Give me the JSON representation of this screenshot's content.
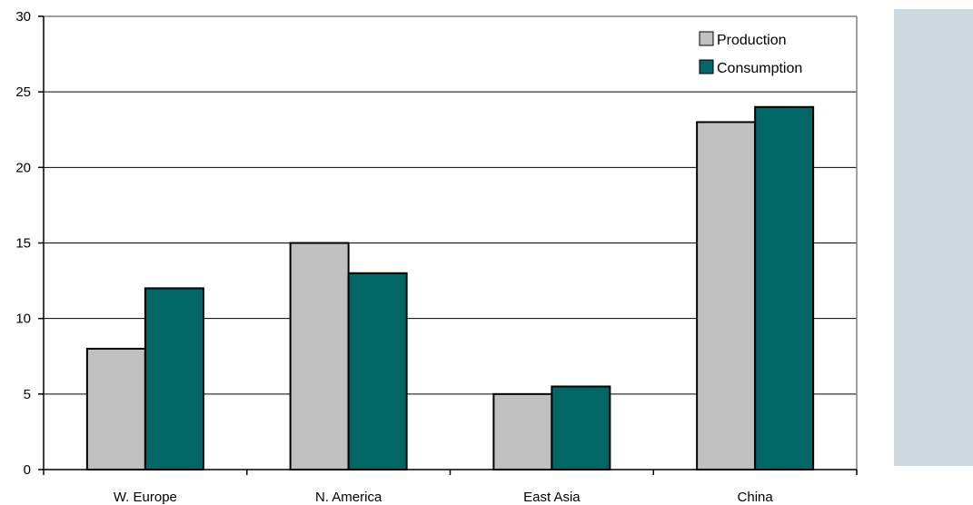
{
  "chart_data": {
    "type": "bar",
    "title": "",
    "xlabel": "",
    "ylabel": "",
    "categories": [
      "W. Europe",
      "N. America",
      "East Asia",
      "China"
    ],
    "series": [
      {
        "name": "Production",
        "values": [
          8,
          15,
          5,
          23
        ]
      },
      {
        "name": "Consumption",
        "values": [
          12,
          13,
          5.5,
          24
        ]
      }
    ],
    "ylim": [
      0,
      30
    ],
    "yticks": [
      0,
      5,
      10,
      15,
      20,
      25,
      30
    ],
    "grid": true,
    "legend_position": "top-right"
  },
  "colors": {
    "production": "#c0c0c0",
    "consumption": "#006666",
    "side_panel": "#cdd8de"
  }
}
